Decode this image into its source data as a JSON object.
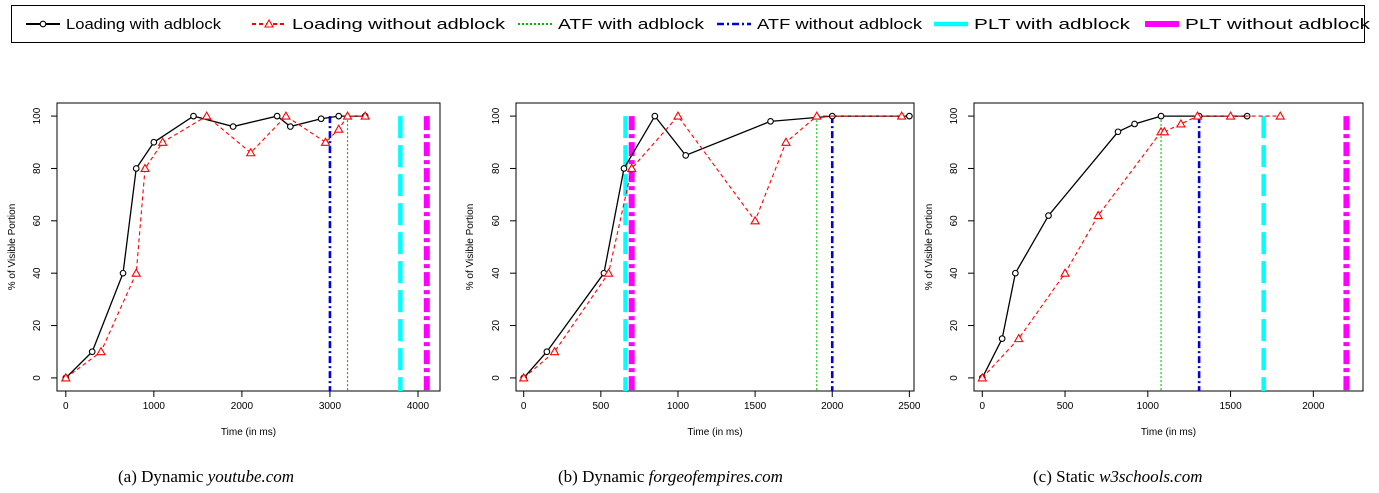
{
  "legend": {
    "items": [
      {
        "label": "Loading with adblock",
        "color": "#000000",
        "style": "solid-circle"
      },
      {
        "label": "Loading without adblock",
        "color": "#ff0000",
        "style": "dashed-triangle"
      },
      {
        "label": "ATF with adblock",
        "color": "#00bb00",
        "style": "dotted"
      },
      {
        "label": "ATF without adblock",
        "color": "#0000dd",
        "style": "dashdot"
      },
      {
        "label": "PLT with adblock",
        "color": "#00ffff",
        "style": "longdash"
      },
      {
        "label": "PLT without adblock",
        "color": "#ff00ff",
        "style": "dashdot-thick"
      }
    ]
  },
  "chart_data": [
    {
      "type": "line",
      "xlabel": "Time (in ms)",
      "ylabel": "% of Visible Portion",
      "xlim": [
        -100,
        4250
      ],
      "ylim": [
        -5,
        105
      ],
      "xticks": [
        0,
        1000,
        2000,
        3000,
        4000
      ],
      "yticks": [
        0,
        20,
        40,
        60,
        80,
        100
      ],
      "caption_prefix": "(a) Dynamic",
      "caption_site": "youtube.com",
      "series": [
        {
          "name": "Loading with adblock",
          "x": [
            0,
            300,
            650,
            800,
            1000,
            1450,
            1900,
            2400,
            2550,
            2900,
            3100,
            3400
          ],
          "y": [
            0,
            10,
            40,
            80,
            90,
            100,
            96,
            100,
            96,
            99,
            100,
            100
          ]
        },
        {
          "name": "Loading without adblock",
          "x": [
            0,
            400,
            800,
            900,
            1100,
            1600,
            2100,
            2500,
            2950,
            3100,
            3200,
            3400
          ],
          "y": [
            0,
            10,
            40,
            80,
            90,
            100,
            86,
            100,
            90,
            95,
            100,
            100
          ]
        }
      ],
      "vlines": {
        "ATF with adblock": 3200,
        "ATF without adblock": 3000,
        "PLT with adblock": 3800,
        "PLT without adblock": 4100
      }
    },
    {
      "type": "line",
      "xlabel": "Time (in ms)",
      "ylabel": "% of Visible Portion",
      "xlim": [
        -50,
        2530
      ],
      "ylim": [
        -5,
        105
      ],
      "xticks": [
        0,
        500,
        1000,
        1500,
        2000,
        2500
      ],
      "yticks": [
        0,
        20,
        40,
        60,
        80,
        100
      ],
      "caption_prefix": "(b) Dynamic",
      "caption_site": "forgeofempires.com",
      "series": [
        {
          "name": "Loading with adblock",
          "x": [
            0,
            150,
            520,
            650,
            850,
            1050,
            1600,
            2000,
            2500
          ],
          "y": [
            0,
            10,
            40,
            80,
            100,
            85,
            98,
            100,
            100
          ]
        },
        {
          "name": "Loading without adblock",
          "x": [
            0,
            200,
            550,
            700,
            1000,
            1500,
            1700,
            1900,
            2450
          ],
          "y": [
            0,
            10,
            40,
            80,
            100,
            60,
            90,
            100,
            100
          ]
        }
      ],
      "vlines": {
        "ATF with adblock": 1900,
        "ATF without adblock": 2000,
        "PLT with adblock": 660,
        "PLT without adblock": 700
      }
    },
    {
      "type": "line",
      "xlabel": "Time (in ms)",
      "ylabel": "% of Visible Portion",
      "xlim": [
        -50,
        2300
      ],
      "ylim": [
        -5,
        105
      ],
      "xticks": [
        0,
        500,
        1000,
        1500,
        2000
      ],
      "yticks": [
        0,
        20,
        40,
        60,
        80,
        100
      ],
      "caption_prefix": "(c) Static",
      "caption_site": "w3schools.com",
      "series": [
        {
          "name": "Loading with adblock",
          "x": [
            0,
            120,
            200,
            400,
            820,
            920,
            1080,
            1310,
            1600
          ],
          "y": [
            0,
            15,
            40,
            62,
            94,
            97,
            100,
            100,
            100
          ]
        },
        {
          "name": "Loading without adblock",
          "x": [
            0,
            220,
            500,
            700,
            1080,
            1100,
            1200,
            1300,
            1500,
            1800
          ],
          "y": [
            0,
            15,
            40,
            62,
            94,
            94,
            97,
            100,
            100,
            100
          ]
        }
      ],
      "vlines": {
        "ATF with adblock": 1080,
        "ATF without adblock": 1310,
        "PLT with adblock": 1700,
        "PLT without adblock": 2200
      }
    }
  ]
}
